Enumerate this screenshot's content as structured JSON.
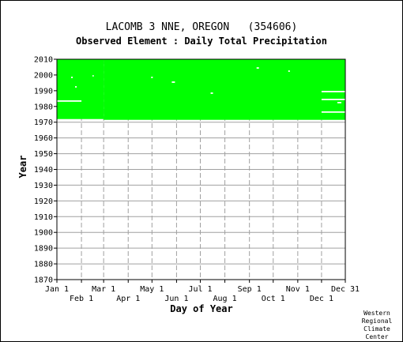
{
  "chart_data": {
    "type": "heatmap",
    "title": "LACOMB 3 NNE, OREGON   (354606)",
    "subtitle": "Observed Element : Daily Total Precipitation",
    "xlabel": "Day of Year",
    "ylabel": "Year",
    "xlim": [
      1,
      365
    ],
    "ylim": [
      1870,
      2010
    ],
    "grid": true,
    "x_ticks_upper": [
      {
        "label": "Jan 1",
        "day": 1
      },
      {
        "label": "Mar 1",
        "day": 60
      },
      {
        "label": "May 1",
        "day": 121
      },
      {
        "label": "Jul 1",
        "day": 182
      },
      {
        "label": "Sep 1",
        "day": 244
      },
      {
        "label": "Nov 1",
        "day": 305
      },
      {
        "label": "Dec 31",
        "day": 365
      }
    ],
    "x_ticks_lower": [
      {
        "label": "Feb 1",
        "day": 32
      },
      {
        "label": "Apr 1",
        "day": 91
      },
      {
        "label": "Jun 1",
        "day": 152
      },
      {
        "label": "Aug 1",
        "day": 213
      },
      {
        "label": "Oct 1",
        "day": 274
      },
      {
        "label": "Dec 1",
        "day": 335
      }
    ],
    "y_ticks": [
      2010,
      2000,
      1990,
      1980,
      1970,
      1960,
      1950,
      1940,
      1930,
      1920,
      1910,
      1900,
      1890,
      1880,
      1870
    ],
    "data_color": "#00ff00",
    "record_start": {
      "year": 1972,
      "day": 1
    },
    "record_start_after_feb": {
      "year": 1971.5,
      "day": 60
    },
    "record_end": 2010,
    "gaps": [
      {
        "year": 1983.5,
        "day_start": 1,
        "day_end": 32
      },
      {
        "year": 1998.5,
        "day_start": 19,
        "day_end": 21
      },
      {
        "year": 1992.5,
        "day_start": 24,
        "day_end": 26
      },
      {
        "year": 1999.5,
        "day_start": 46,
        "day_end": 47
      },
      {
        "year": 1998.5,
        "day_start": 120,
        "day_end": 122
      },
      {
        "year": 1995.5,
        "day_start": 146,
        "day_end": 150
      },
      {
        "year": 1988.5,
        "day_start": 195,
        "day_end": 198
      },
      {
        "year": 2004.5,
        "day_start": 253,
        "day_end": 256
      },
      {
        "year": 2002.5,
        "day_start": 293,
        "day_end": 295
      },
      {
        "year": 1989.5,
        "day_start": 335,
        "day_end": 365
      },
      {
        "year": 1984.5,
        "day_start": 335,
        "day_end": 365
      },
      {
        "year": 1982.5,
        "day_start": 355,
        "day_end": 360
      },
      {
        "year": 1976.5,
        "day_start": 335,
        "day_end": 365
      }
    ]
  },
  "credit": [
    "Western",
    "Regional",
    "Climate",
    "Center"
  ]
}
